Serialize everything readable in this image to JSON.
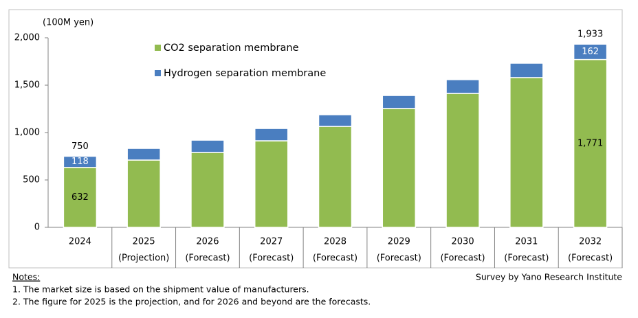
{
  "chart_data": {
    "type": "stacked-bar",
    "y_unit_label": "(100M yen)",
    "categories": [
      "2024",
      "2025",
      "2026",
      "2027",
      "2028",
      "2029",
      "2030",
      "2031",
      "2032"
    ],
    "category_notes": [
      null,
      "(Projection)",
      "(Forecast)",
      "(Forecast)",
      "(Forecast)",
      "(Forecast)",
      "(Forecast)",
      "(Forecast)",
      "(Forecast)"
    ],
    "series": [
      {
        "name": "CO2 separation membrane",
        "color": "#92bb50",
        "values": [
          632,
          710,
          790,
          913,
          1065,
          1254,
          1413,
          1580,
          1771
        ],
        "value_labels": [
          "632",
          null,
          null,
          null,
          null,
          null,
          null,
          null,
          "1,771"
        ]
      },
      {
        "name": "Hydrogen separation membrane",
        "color": "#4a7ec0",
        "values": [
          118,
          123,
          130,
          130,
          123,
          137,
          145,
          152,
          162
        ],
        "value_labels": [
          "118",
          null,
          null,
          null,
          null,
          null,
          null,
          null,
          "162"
        ]
      }
    ],
    "totals": {
      "values": [
        750,
        null,
        null,
        null,
        null,
        null,
        null,
        null,
        1933
      ],
      "value_labels": [
        "750",
        null,
        null,
        null,
        null,
        null,
        null,
        null,
        "1,933"
      ]
    },
    "ylim": [
      0,
      2000
    ],
    "yticks": [
      0,
      500,
      {
        "value": 1000,
        "label": "1,000"
      },
      {
        "value": 1500,
        "label": "1,500"
      },
      {
        "value": 2000,
        "label": "2,000"
      }
    ],
    "grid": false
  },
  "notes": {
    "heading": "Notes:",
    "items": [
      "1.  The market size is based on the shipment value of manufacturers.",
      "2.  The figure for 2025 is the projection, and for 2026 and beyond are the forecasts."
    ]
  },
  "source": "Survey by Yano Research Institute"
}
